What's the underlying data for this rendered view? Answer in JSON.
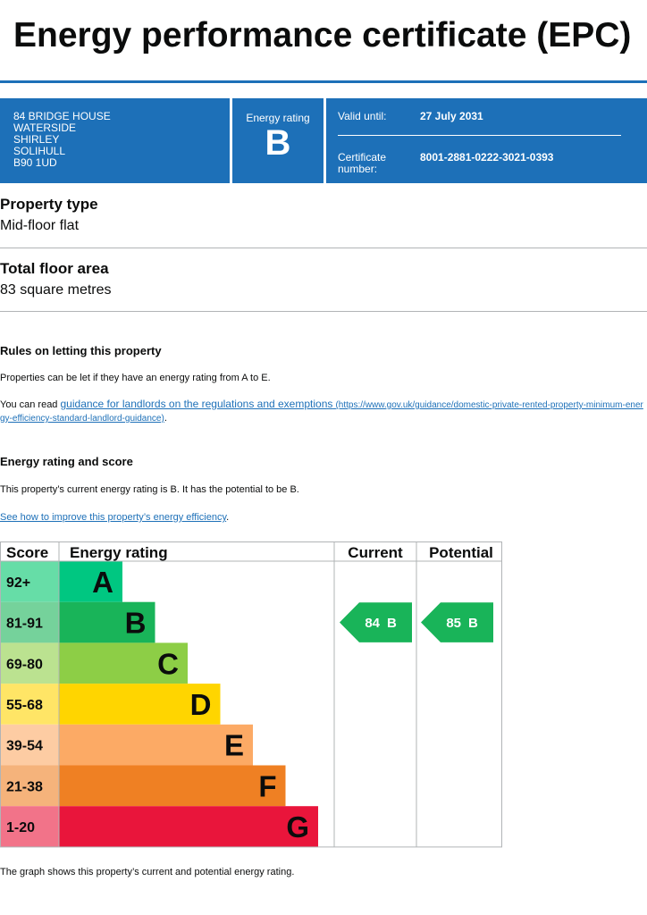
{
  "title": "Energy performance certificate (EPC)",
  "header": {
    "address": [
      "84 BRIDGE HOUSE",
      "WATERSIDE",
      "SHIRLEY",
      "SOLIHULL",
      "B90 1UD"
    ],
    "rating_label": "Energy rating",
    "rating": "B",
    "valid_label": "Valid until:",
    "valid_until": "27 July 2031",
    "certificate_label": "Certificate number:",
    "certificate_number": "8001-2881-0222-3021-0393"
  },
  "property_type": {
    "heading": "Property type",
    "value": "Mid-floor flat"
  },
  "floor_area": {
    "heading": "Total floor area",
    "value": "83 square metres"
  },
  "letting": {
    "heading": "Rules on letting this property",
    "text": "Properties can be let if they have an energy rating from A to E.",
    "read_prefix": "You can read",
    "link_text": "guidance for landlords on the regulations and exemptions",
    "link_url": "(https://www.gov.uk/guidance/domestic-private-rented-property-minimum-energy-efficiency-standard-landlord-guidance)",
    "suffix": "."
  },
  "rating_section": {
    "heading": "Energy rating and score",
    "text": "This property’s current energy rating is B. It has the potential to be B.",
    "link_text": "See how to improve this property’s energy efficiency",
    "suffix": "."
  },
  "chart": {
    "headers": [
      "Score",
      "Energy rating",
      "Current",
      "Potential"
    ],
    "bands": [
      {
        "score": "92+",
        "letter": "A",
        "color": "#00c781",
        "score_color": "#66dda7"
      },
      {
        "score": "81-91",
        "letter": "B",
        "color": "#19b459",
        "score_color": "#75d29b"
      },
      {
        "score": "69-80",
        "letter": "C",
        "color": "#8dce46",
        "score_color": "#bbe290"
      },
      {
        "score": "55-68",
        "letter": "D",
        "color": "#ffd500",
        "score_color": "#ffe566"
      },
      {
        "score": "39-54",
        "letter": "E",
        "color": "#fcaa65",
        "score_color": "#fdcca3"
      },
      {
        "score": "21-38",
        "letter": "F",
        "color": "#ef8023",
        "score_color": "#f5b37b"
      },
      {
        "score": "1-20",
        "letter": "G",
        "color": "#e9153b",
        "score_color": "#f27389"
      }
    ],
    "current": {
      "score": "84",
      "letter": "B"
    },
    "potential": {
      "score": "85",
      "letter": "B"
    }
  },
  "footnote": "The graph shows this property’s current and potential energy rating."
}
